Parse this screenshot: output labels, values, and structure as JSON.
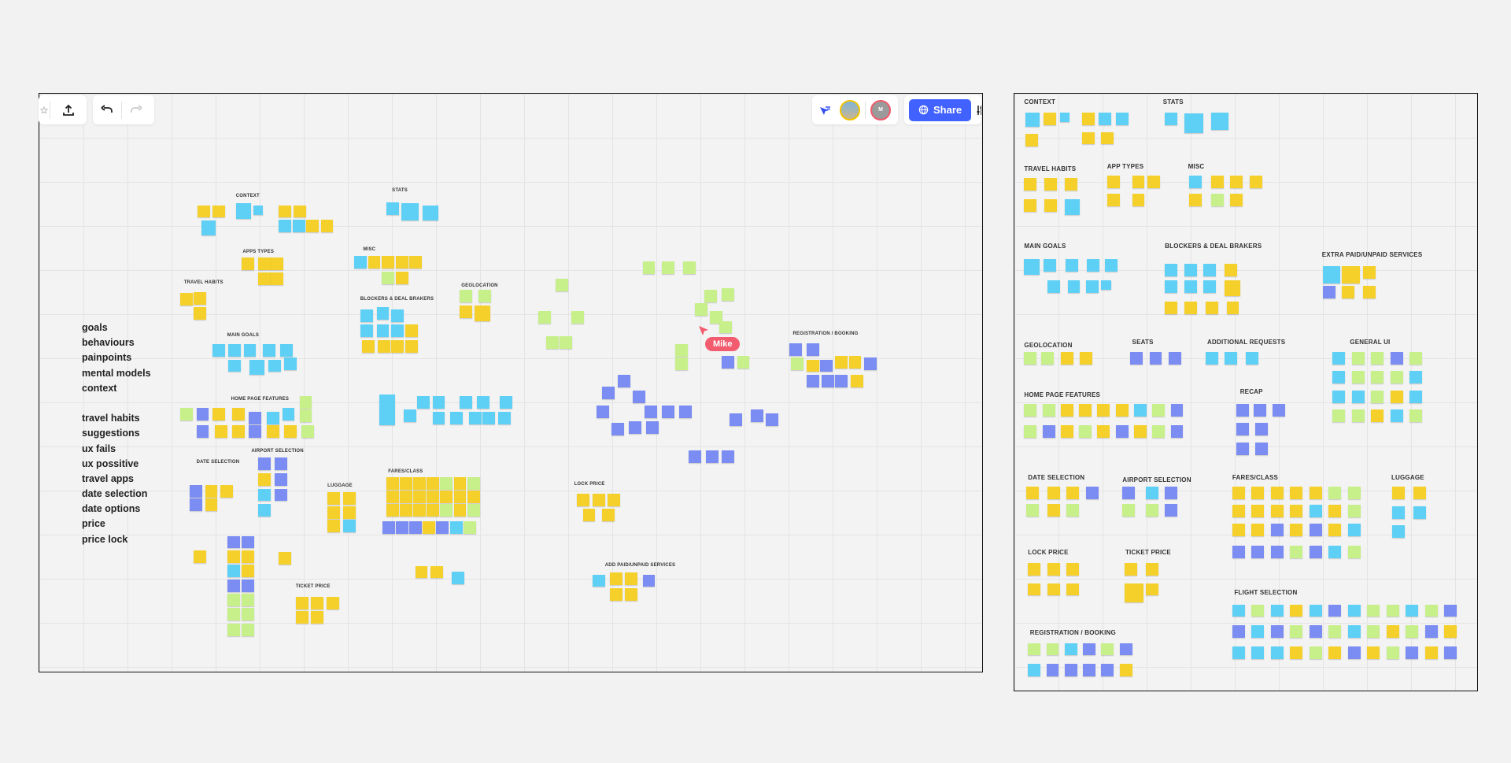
{
  "toolbar": {
    "left_icons": [
      "star-icon",
      "upload-icon",
      "undo-icon",
      "redo-icon"
    ],
    "right_icons": [
      "cursor-follow-icon",
      "avatar-photo",
      "avatar-m",
      "globe-icon",
      "settings-sliders-icon"
    ],
    "avatar_initial": "M",
    "share_label": "Share",
    "accent_color": "#4262ff"
  },
  "collaborator_cursor": {
    "name": "Mike",
    "color": "#f25c6e"
  },
  "sticky_colors": {
    "yellow": "#f5d02a",
    "cyan": "#5ed0f5",
    "purple": "#7b8cf2",
    "green": "#c8f08a"
  },
  "left_board": {
    "topic_list": [
      "goals",
      "behaviours",
      "painpoints",
      "mental models",
      "context",
      "",
      "travel habits",
      "suggestions",
      "ux fails",
      "ux possitive",
      "travel apps",
      "date selection",
      "date options",
      "price",
      "price lock"
    ],
    "sections": [
      "CONTEXT",
      "STATS",
      "APPS TYPES",
      "MISC",
      "TRAVEL HABITS",
      "GEOLOCATION",
      "BLOCKERS & DEAL BRAKERS",
      "MAIN GOALS",
      "REGISTRATION / BOOKING",
      "HOME PAGE FEATURES",
      "AIRPORT SELECTION",
      "DATE SELECTION",
      "LUGGAGE",
      "FARES/CLASS",
      "LOCK PRICE",
      "ADD PAID/UNPAID SERVICES",
      "TICKET PRICE"
    ]
  },
  "right_board": {
    "sections": [
      "CONTEXT",
      "STATS",
      "TRAVEL HABITS",
      "APP TYPES",
      "MISC",
      "MAIN GOALS",
      "BLOCKERS & DEAL BRAKERS",
      "EXTRA PAID/UNPAID SERVICES",
      "GEOLOCATION",
      "SEATS",
      "ADDITIONAL REQUESTS",
      "GENERAL UI",
      "HOME PAGE FEATURES",
      "RECAP",
      "DATE SELECTION",
      "AIRPORT SELECTION",
      "FARES/CLASS",
      "LUGGAGE",
      "LOCK PRICE",
      "TICKET PRICE",
      "FLIGHT SELECTION",
      "REGISTRATION / BOOKING"
    ]
  }
}
